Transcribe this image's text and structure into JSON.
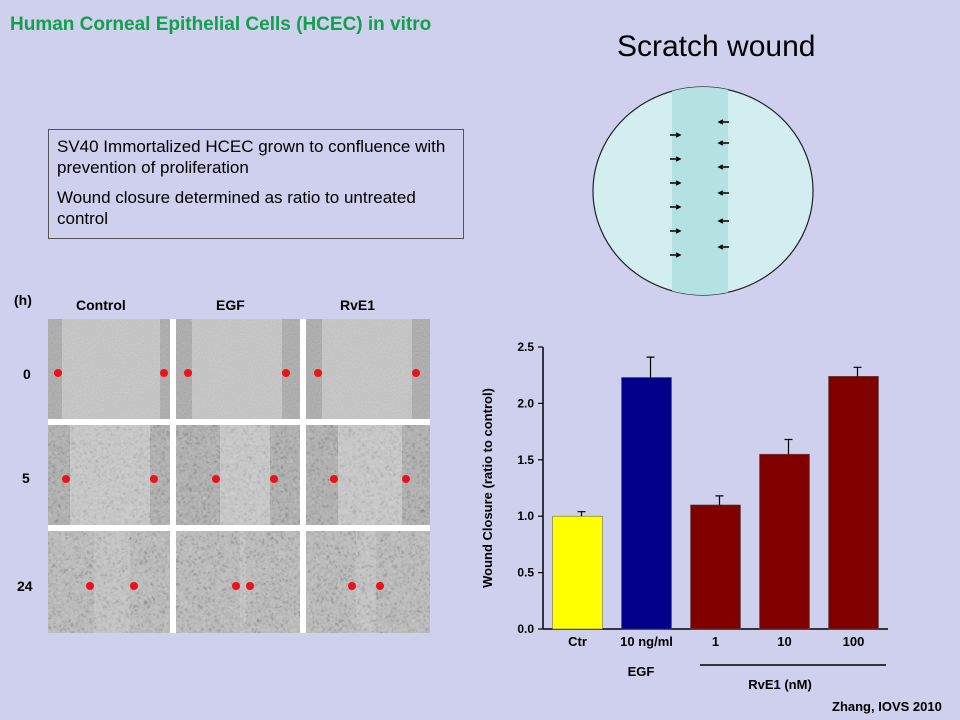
{
  "slide": {
    "title": "Human Corneal Epithelial Cells (HCEC) in vitro",
    "scratch_title": "Scratch wound",
    "info_lines": [
      "SV40 Immortalized HCEC grown to confluence with prevention of proliferation",
      "Wound closure determined as ratio to untreated control"
    ],
    "credit": "Zhang, IOVS 2010"
  },
  "micrograph": {
    "hours_label": "(h)",
    "columns": [
      "Control",
      "EGF",
      "RvE1"
    ],
    "rows": [
      "0",
      "5",
      "24"
    ],
    "marker_color": "#e8141a"
  },
  "chart_data": {
    "type": "bar",
    "categories": [
      "Ctr",
      "10 ng/ml",
      "1",
      "10",
      "100"
    ],
    "values": [
      1.0,
      2.23,
      1.1,
      1.55,
      2.24
    ],
    "errors": [
      0.04,
      0.18,
      0.08,
      0.13,
      0.08
    ],
    "colors": [
      "#ffff00",
      "#00008b",
      "#800000",
      "#800000",
      "#800000"
    ],
    "ylabel": "Wound Closure (ratio to control)",
    "ylim": [
      0,
      2.5
    ],
    "yticks": [
      "0.0",
      "0.5",
      "1.0",
      "1.5",
      "2.0",
      "2.5"
    ],
    "groups": [
      {
        "label": "EGF"
      },
      {
        "label": "RvE1 (nM)"
      }
    ]
  }
}
